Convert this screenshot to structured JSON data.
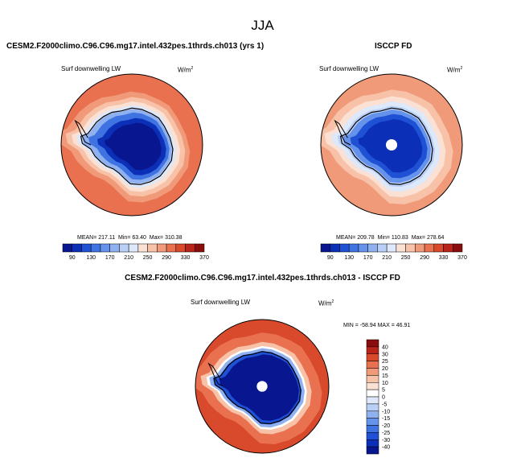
{
  "chart_data": [
    {
      "type": "heatmap",
      "projection": "south-polar-stereographic",
      "title": "CESM2.F2000climo.C96.C96.mg17.intel.432pes.1thrds.ch013 (yrs 1)",
      "subtitle": "Surf downwelling LW",
      "units": "W/m",
      "units_sup": "2",
      "stats": {
        "mean_label": "MEAN=",
        "mean": "217.11",
        "min_label": "Min=",
        "min": "63.40",
        "max_label": "Max=",
        "max": "310.38"
      },
      "colorbar_levels": [
        90,
        110,
        130,
        150,
        170,
        190,
        210,
        230,
        250,
        270,
        290,
        310,
        330,
        350,
        370
      ],
      "colorbar_labels": [
        "90",
        "130",
        "170",
        "210",
        "250",
        "290",
        "330",
        "370"
      ],
      "missing_pole": false
    },
    {
      "type": "heatmap",
      "projection": "south-polar-stereographic",
      "title": "ISCCP FD",
      "subtitle": "Surf downwelling LW",
      "units": "W/m",
      "units_sup": "2",
      "stats": {
        "mean_label": "MEAN=",
        "mean": "209.78",
        "min_label": "Min=",
        "min": "110.83",
        "max_label": "Max=",
        "max": "278.64"
      },
      "colorbar_levels": [
        90,
        110,
        130,
        150,
        170,
        190,
        210,
        230,
        250,
        270,
        290,
        310,
        330,
        350,
        370
      ],
      "colorbar_labels": [
        "90",
        "130",
        "170",
        "210",
        "250",
        "290",
        "330",
        "370"
      ],
      "missing_pole": true
    },
    {
      "type": "heatmap",
      "projection": "south-polar-stereographic",
      "title": "CESM2.F2000climo.C96.C96.mg17.intel.432pes.1thrds.ch013 - ISCCP FD",
      "subtitle": "Surf downwelling LW",
      "units": "W/m",
      "units_sup": "2",
      "stats_text": "MIN = -58.94 MAX =  46.91",
      "colorbar_levels": [
        -40,
        -30,
        -25,
        -20,
        -15,
        -10,
        -5,
        0,
        5,
        10,
        15,
        20,
        25,
        30,
        40
      ],
      "colorbar_labels": [
        "40",
        "30",
        "25",
        "20",
        "15",
        "10",
        "5",
        "0",
        "-5",
        "-10",
        "-15",
        "-20",
        "-25",
        "-30",
        "-40"
      ],
      "missing_pole": true
    }
  ],
  "page": {
    "season": "JJA"
  },
  "colors": {
    "seq": [
      "#08178f",
      "#0c2fb8",
      "#1f51d4",
      "#3f73e2",
      "#6592ea",
      "#8fb1f0",
      "#b9cff6",
      "#dde8fa",
      "#fbe1d4",
      "#f7c2a8",
      "#f19a79",
      "#e9714f",
      "#d9492b",
      "#b8231a",
      "#8a0d0d"
    ],
    "diff": [
      "#08178f",
      "#0c2fb8",
      "#1f51d4",
      "#3f73e2",
      "#6592ea",
      "#8fb1f0",
      "#b9cff6",
      "#dde8fa",
      "#ffffff",
      "#fbe1d4",
      "#f7c2a8",
      "#f19a79",
      "#e9714f",
      "#d9492b",
      "#b8231a",
      "#8a0d0d"
    ],
    "continent": "#000000"
  }
}
